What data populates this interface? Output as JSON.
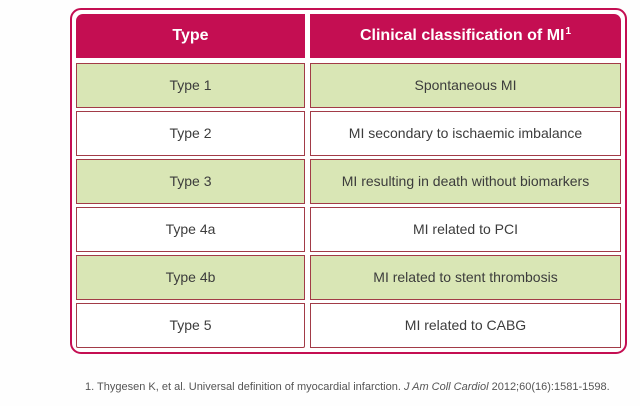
{
  "table": {
    "header": {
      "type_label": "Type",
      "classification_label": "Clinical classification of MI",
      "classification_superscript": "1"
    },
    "rows": [
      {
        "type": "Type 1",
        "classification": "Spontaneous MI",
        "highlighted": true
      },
      {
        "type": "Type 2",
        "classification": "MI secondary to ischaemic imbalance",
        "highlighted": false
      },
      {
        "type": "Type 3",
        "classification": "MI resulting in death without biomarkers",
        "highlighted": true
      },
      {
        "type": "Type 4a",
        "classification": "MI related to PCI",
        "highlighted": false
      },
      {
        "type": "Type 4b",
        "classification": "MI related to stent thrombosis",
        "highlighted": true
      },
      {
        "type": "Type 5",
        "classification": "MI related to CABG",
        "highlighted": false
      }
    ]
  },
  "footnote": {
    "text_before_journal": "1. Thygesen K, et al. Universal definition of myocardial infarction. ",
    "journal": "J Am Coll Cardiol",
    "text_after_journal": " 2012;60(16):1581-1598."
  },
  "colors": {
    "page_bg": "#FEFEFE",
    "header_bg": "#C40E52",
    "header_text": "#FFFFFF",
    "outer_border": "#C40E52",
    "cell_border": "#A23B47",
    "highlight_row_bg": "#D9E6B5",
    "body_text": "#3C3C3C",
    "footnote_text": "#555555"
  }
}
